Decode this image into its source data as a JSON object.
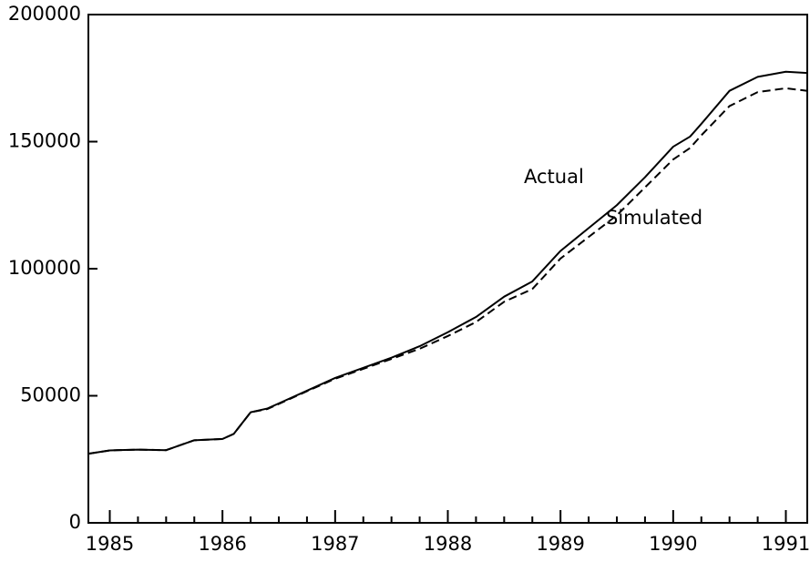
{
  "chart_data": {
    "type": "line",
    "x": [
      1984.81,
      1985.0,
      1985.25,
      1985.5,
      1985.75,
      1986.0,
      1986.1,
      1986.25,
      1986.4,
      1986.5,
      1986.75,
      1987.0,
      1987.25,
      1987.5,
      1987.75,
      1988.0,
      1988.25,
      1988.5,
      1988.75,
      1989.0,
      1989.25,
      1989.5,
      1989.75,
      1990.0,
      1990.15,
      1990.25,
      1990.5,
      1990.75,
      1991.0,
      1991.19
    ],
    "series": [
      {
        "name": "Actual",
        "color": "#000000",
        "dash": false,
        "values": [
          27200,
          28500,
          28800,
          28600,
          32500,
          33000,
          35000,
          43500,
          45000,
          47000,
          52000,
          57000,
          61000,
          65000,
          69500,
          75000,
          81000,
          89000,
          95000,
          107000,
          116000,
          125000,
          136000,
          148000,
          152000,
          157000,
          170000,
          175500,
          177500,
          177000
        ]
      },
      {
        "name": "Simulated",
        "color": "#000000",
        "dash": true,
        "values": [
          27200,
          28500,
          28800,
          28600,
          32500,
          33000,
          35000,
          43500,
          44800,
          46800,
          51800,
          56700,
          60600,
          64500,
          68500,
          73500,
          79000,
          87000,
          92000,
          104000,
          112500,
          121000,
          132000,
          143000,
          147500,
          152500,
          164000,
          169500,
          171000,
          170000
        ]
      }
    ],
    "xlim": [
      1984.81,
      1991.19
    ],
    "xticks": [
      1985,
      1986,
      1987,
      1988,
      1989,
      1990,
      1991
    ],
    "xminorticks": [
      1985.25,
      1985.5,
      1985.75,
      1986.25,
      1986.5,
      1986.75,
      1987.25,
      1987.5,
      1987.75,
      1988.25,
      1988.5,
      1988.75,
      1989.25,
      1989.5,
      1989.75,
      1990.25,
      1990.5,
      1990.75
    ],
    "ylim": [
      0,
      200000
    ],
    "yticks": [
      0,
      50000,
      100000,
      150000,
      200000
    ],
    "grid": false
  }
}
